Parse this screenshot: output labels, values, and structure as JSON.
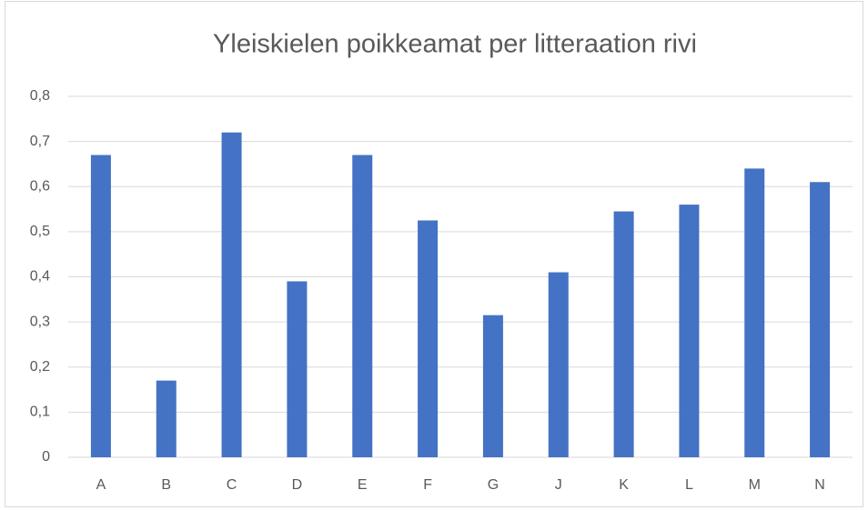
{
  "chart_data": {
    "type": "bar",
    "title": "Yleiskielen poikkeamat per litteraation rivi",
    "categories": [
      "A",
      "B",
      "C",
      "D",
      "E",
      "F",
      "G",
      "J",
      "K",
      "L",
      "M",
      "N"
    ],
    "values": [
      0.67,
      0.17,
      0.72,
      0.39,
      0.67,
      0.525,
      0.315,
      0.41,
      0.545,
      0.56,
      0.64,
      0.61
    ],
    "color": "#4472c4",
    "ylim": [
      0,
      0.8
    ],
    "yticks": [
      0,
      {
        "value": 0.1,
        "label": "0,1"
      },
      {
        "value": 0.2,
        "label": "0,2"
      },
      {
        "value": 0.3,
        "label": "0,3"
      },
      {
        "value": 0.4,
        "label": "0,4"
      },
      {
        "value": 0.5,
        "label": "0,5"
      },
      {
        "value": 0.6,
        "label": "0,6"
      },
      {
        "value": 0.7,
        "label": "0,7"
      },
      {
        "value": 0.8,
        "label": "0,8"
      }
    ],
    "grid": true
  }
}
